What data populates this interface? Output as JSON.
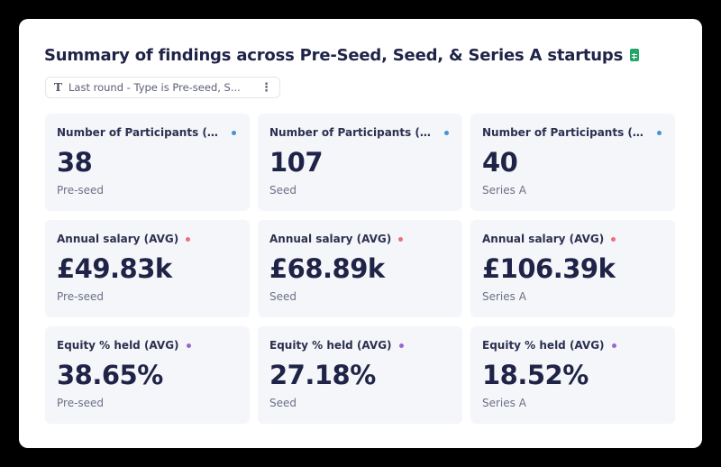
{
  "header": {
    "title": "Summary of findings across Pre-Seed, Seed, & Series A startups",
    "title_icon": "google-sheets-icon"
  },
  "filter": {
    "type_icon": "T",
    "label": "Last round - Type is Pre-seed, S...",
    "menu_icon": "⋮"
  },
  "colors": {
    "participants_dot": "#4a8fd9",
    "salary_dot": "#ec6f7c",
    "equity_dot": "#9a66cf",
    "sheet_icon": "#23a566"
  },
  "metrics": [
    {
      "label": "Number of Participants (COU...",
      "value": "38",
      "stage": "Pre-seed",
      "dot": "#4a8fd9"
    },
    {
      "label": "Number of Participants (COU...",
      "value": "107",
      "stage": "Seed",
      "dot": "#4a8fd9"
    },
    {
      "label": "Number of Participants (COU...",
      "value": "40",
      "stage": "Series A",
      "dot": "#4a8fd9"
    },
    {
      "label": "Annual salary (AVG)",
      "value": "£49.83k",
      "stage": "Pre-seed",
      "dot": "#ec6f7c"
    },
    {
      "label": "Annual salary (AVG)",
      "value": "£68.89k",
      "stage": "Seed",
      "dot": "#ec6f7c"
    },
    {
      "label": "Annual salary (AVG)",
      "value": "£106.39k",
      "stage": "Series A",
      "dot": "#ec6f7c"
    },
    {
      "label": "Equity % held (AVG)",
      "value": "38.65%",
      "stage": "Pre-seed",
      "dot": "#9a66cf"
    },
    {
      "label": "Equity % held (AVG)",
      "value": "27.18%",
      "stage": "Seed",
      "dot": "#9a66cf"
    },
    {
      "label": "Equity % held (AVG)",
      "value": "18.52%",
      "stage": "Series A",
      "dot": "#9a66cf"
    }
  ]
}
